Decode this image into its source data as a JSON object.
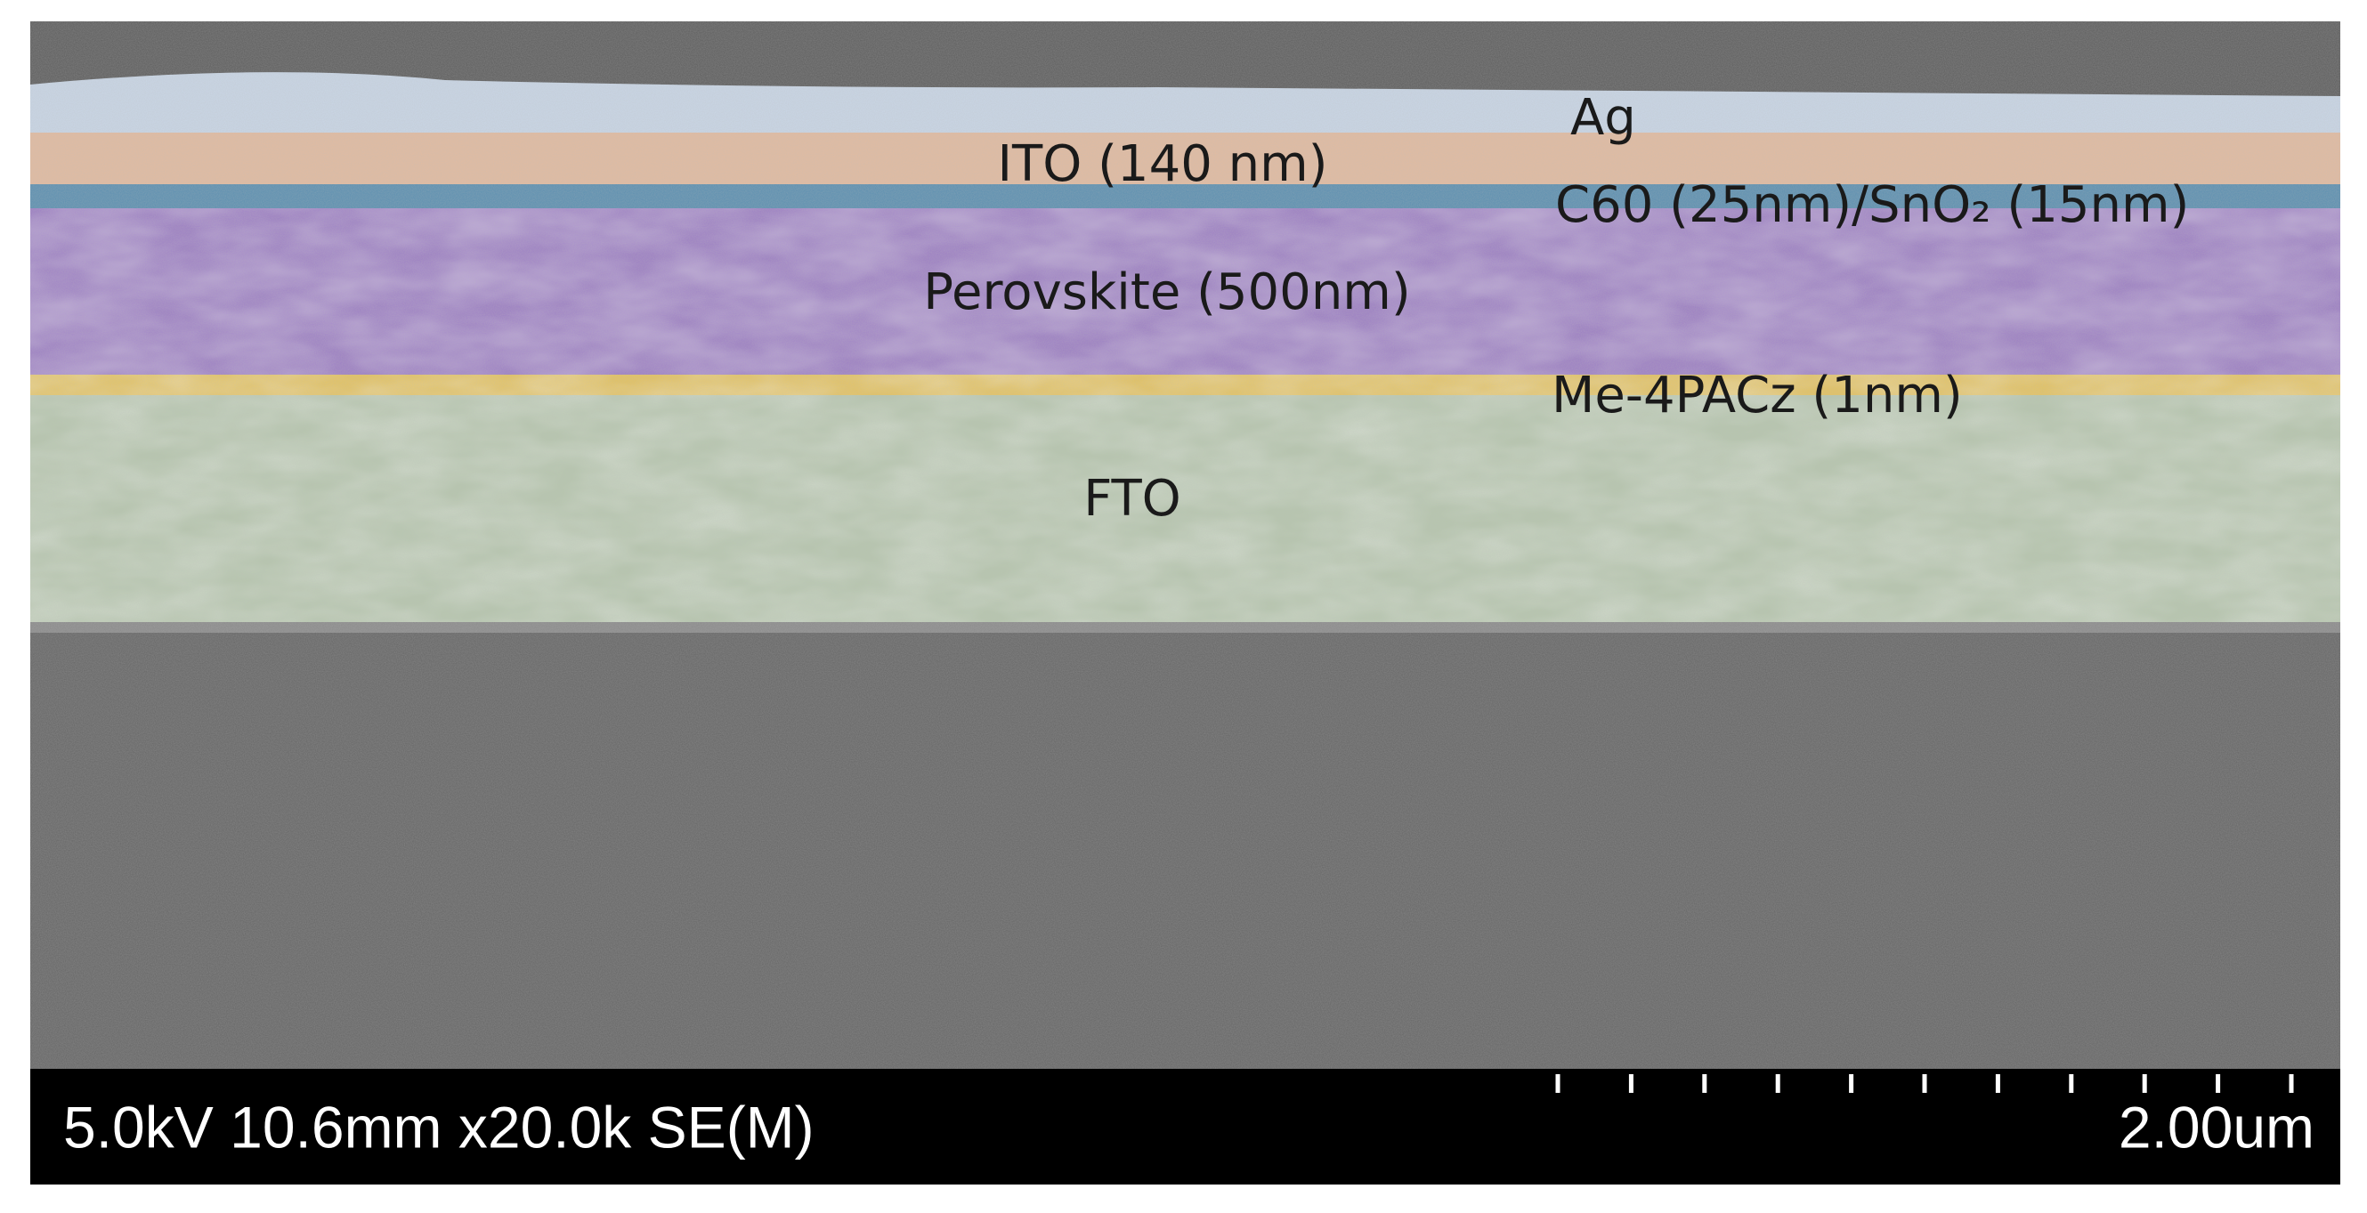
{
  "labels": {
    "ag": "Ag",
    "ito": "ITO (140 nm)",
    "etl": "C60 (25nm)/SnO₂ (15nm)",
    "perovskite": "Perovskite (500nm)",
    "hole_layer": "Me-4PACz (1nm)",
    "fto": "FTO"
  },
  "info_bar": {
    "conditions": "5.0kV 10.6mm x20.0k SE(M)",
    "scale": "2.00um"
  }
}
